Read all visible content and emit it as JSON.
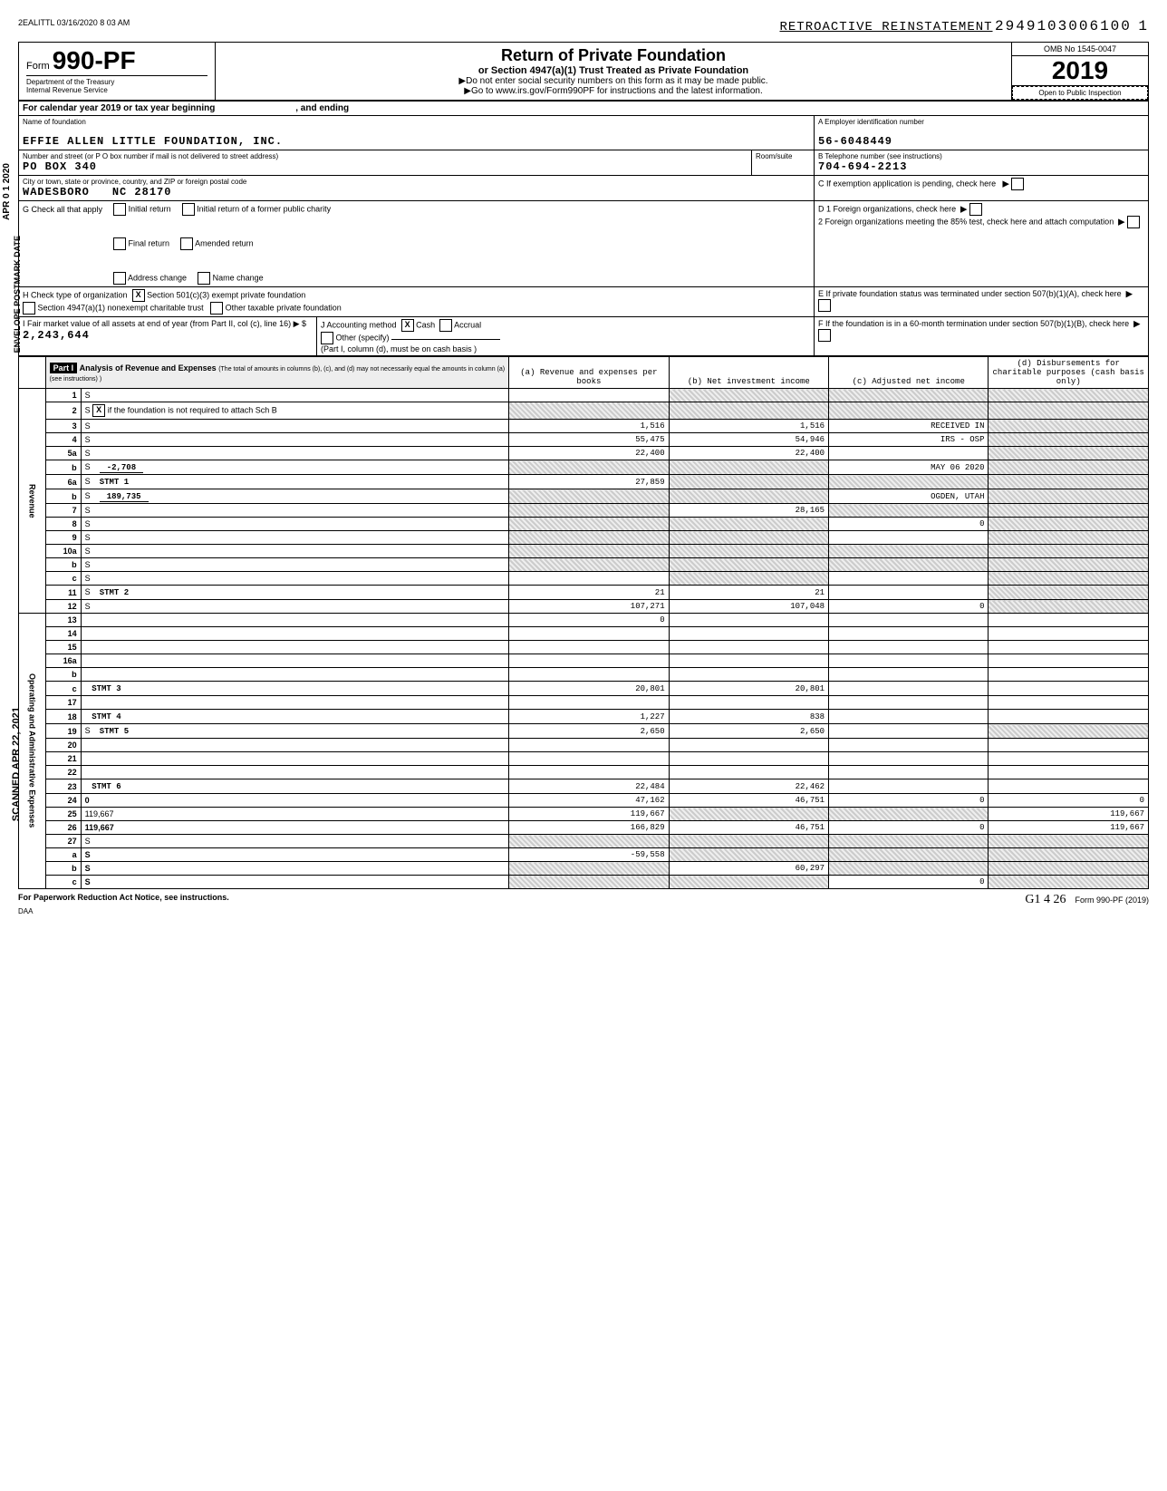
{
  "header": {
    "top_left": "2EALITTL 03/16/2020 8 03 AM",
    "stamp_text": "RETROACTIVE REINSTATEMENT",
    "stamp_number": "2949103006100",
    "stamp_page": "1",
    "form_prefix": "Form",
    "form_number": "990-PF",
    "dept1": "Department of the Treasury",
    "dept2": "Internal Revenue Service",
    "title": "Return of Private Foundation",
    "subtitle": "or Section 4947(a)(1) Trust Treated as Private Foundation",
    "notice1": "▶Do not enter social security numbers on this form as it may be made public.",
    "notice2": "▶Go to www.irs.gov/Form990PF for instructions and the latest information.",
    "omb": "OMB No 1545-0047",
    "year": "2019",
    "public_insp": "Open to Public Inspection",
    "cal_year": "For calendar year 2019 or tax year beginning",
    "cal_year_mid": ", and ending"
  },
  "info": {
    "name_label": "Name of foundation",
    "name_value": "EFFIE ALLEN LITTLE FOUNDATION, INC.",
    "ein_label": "A   Employer identification number",
    "ein_value": "56-6048449",
    "addr_label": "Number and street (or P O  box number if mail is not delivered to street address)",
    "addr_room": "Room/suite",
    "addr_value": "PO BOX 340",
    "phone_label": "B   Telephone number (see instructions)",
    "phone_value": "704-694-2213",
    "city_label": "City or town, state or province, country, and ZIP or foreign postal code",
    "city_value": "WADESBORO",
    "state_value": "NC 28170",
    "c_label": "C   If exemption application is pending, check here",
    "g_label": "G  Check all that apply",
    "g_opts": [
      "Initial return",
      "Final return",
      "Address change",
      "Initial return of a former public charity",
      "Amended return",
      "Name change"
    ],
    "d_label": "D  1   Foreign organizations, check here",
    "d2_label": "2   Foreign organizations meeting the 85% test, check here and attach computation",
    "h_label": "H  Check type of organization",
    "h_opt1": "Section 501(c)(3) exempt private foundation",
    "h_opt2": "Section 4947(a)(1) nonexempt charitable trust",
    "h_opt3": "Other taxable private foundation",
    "e_label": "E   If private foundation status was terminated under section 507(b)(1)(A), check here",
    "i_label": "I   Fair market value of all assets at end of year (from Part II, col (c), line 16) ▶  $",
    "i_value": "2,243,644",
    "j_label": "J   Accounting method",
    "j_cash": "Cash",
    "j_accrual": "Accrual",
    "j_other": "Other (specify)",
    "j_note": "(Part I, column (d), must be on cash basis )",
    "f_label": "F   If the foundation is in a 60-month termination under section 507(b)(1)(B), check here"
  },
  "part1": {
    "label": "Part I",
    "title": "Analysis of Revenue and Expenses",
    "note": "(The total of amounts in columns (b), (c), and (d) may not necessarily equal the amounts in column (a) (see instructions) )",
    "col_a": "(a) Revenue and expenses per books",
    "col_b": "(b) Net investment income",
    "col_c": "(c) Adjusted net income",
    "col_d": "(d) Disbursements for charitable purposes (cash basis only)",
    "revenue_label": "Revenue",
    "expenses_label": "Operating and Administrative Expenses"
  },
  "rows": [
    {
      "n": "1",
      "d": "S",
      "a": "",
      "b": "S",
      "c": "S"
    },
    {
      "n": "2",
      "d": "S",
      "extra": "if the foundation is not required to attach Sch B",
      "chk": "X",
      "a": "S",
      "b": "S",
      "c": "S"
    },
    {
      "n": "3",
      "d": "S",
      "a": "1,516",
      "b": "1,516",
      "c": "RECEIVED IN"
    },
    {
      "n": "4",
      "d": "S",
      "a": "55,475",
      "b": "54,946",
      "c": "IRS - OSP"
    },
    {
      "n": "5a",
      "d": "S",
      "a": "22,400",
      "b": "22,400",
      "c": ""
    },
    {
      "n": "b",
      "d": "S",
      "stmt": "",
      "val": "-2,708",
      "a": "S",
      "b": "S",
      "c": "MAY 06 2020"
    },
    {
      "n": "6a",
      "d": "S",
      "stmt": "STMT 1",
      "a": "27,859",
      "b": "S",
      "c": "S"
    },
    {
      "n": "b",
      "d": "S",
      "val": "189,735",
      "a": "S",
      "b": "S",
      "c": "OGDEN, UTAH"
    },
    {
      "n": "7",
      "d": "S",
      "a": "S",
      "b": "28,165",
      "c": "S"
    },
    {
      "n": "8",
      "d": "S",
      "a": "S",
      "b": "S",
      "c": "0"
    },
    {
      "n": "9",
      "d": "S",
      "a": "S",
      "b": "S",
      "c": ""
    },
    {
      "n": "10a",
      "d": "S",
      "a": "S",
      "b": "S",
      "c": "S"
    },
    {
      "n": "b",
      "d": "S",
      "a": "S",
      "b": "S",
      "c": "S"
    },
    {
      "n": "c",
      "d": "S",
      "a": "",
      "b": "S",
      "c": ""
    },
    {
      "n": "11",
      "d": "S",
      "stmt": "STMT 2",
      "a": "21",
      "b": "21",
      "c": ""
    },
    {
      "n": "12",
      "d": "S",
      "a": "107,271",
      "b": "107,048",
      "c": "0"
    },
    {
      "n": "13",
      "d": "",
      "a": "0",
      "b": "",
      "c": ""
    },
    {
      "n": "14",
      "d": "",
      "a": "",
      "b": "",
      "c": ""
    },
    {
      "n": "15",
      "d": "",
      "a": "",
      "b": "",
      "c": ""
    },
    {
      "n": "16a",
      "d": "",
      "a": "",
      "b": "",
      "c": ""
    },
    {
      "n": "b",
      "d": "",
      "a": "",
      "b": "",
      "c": ""
    },
    {
      "n": "c",
      "d": "",
      "stmt": "STMT 3",
      "a": "20,801",
      "b": "20,801",
      "c": ""
    },
    {
      "n": "17",
      "d": "",
      "a": "",
      "b": "",
      "c": ""
    },
    {
      "n": "18",
      "d": "",
      "stmt": "STMT 4",
      "a": "1,227",
      "b": "838",
      "c": ""
    },
    {
      "n": "19",
      "d": "S",
      "stmt": "STMT 5",
      "a": "2,650",
      "b": "2,650",
      "c": ""
    },
    {
      "n": "20",
      "d": "",
      "a": "",
      "b": "",
      "c": ""
    },
    {
      "n": "21",
      "d": "",
      "a": "",
      "b": "",
      "c": ""
    },
    {
      "n": "22",
      "d": "",
      "a": "",
      "b": "",
      "c": ""
    },
    {
      "n": "23",
      "d": "",
      "stmt": "STMT 6",
      "a": "22,484",
      "b": "22,462",
      "c": ""
    },
    {
      "n": "24",
      "d": "0",
      "bold": true,
      "a": "47,162",
      "b": "46,751",
      "c": "0"
    },
    {
      "n": "25",
      "d": "119,667",
      "a": "119,667",
      "b": "S",
      "c": "S"
    },
    {
      "n": "26",
      "d": "119,667",
      "bold": true,
      "a": "166,829",
      "b": "46,751",
      "c": "0"
    },
    {
      "n": "27",
      "d": "S",
      "a": "S",
      "b": "S",
      "c": "S"
    },
    {
      "n": "a",
      "d": "S",
      "bold": true,
      "a": "-59,558",
      "b": "S",
      "c": "S"
    },
    {
      "n": "b",
      "d": "S",
      "bold": true,
      "a": "S",
      "b": "60,297",
      "c": "S"
    },
    {
      "n": "c",
      "d": "S",
      "bold": true,
      "a": "S",
      "b": "S",
      "c": "0"
    }
  ],
  "footer": {
    "left": "For Paperwork Reduction Act Notice, see instructions.",
    "daa": "DAA",
    "right": "Form 990-PF (2019)",
    "handwrite": "G1 4 26"
  },
  "side_markers": {
    "date1": "APR 0 1 2020",
    "envelope": "ENVELOPE POSTMARK DATE",
    "scanned": "SCANNED APR 22, 2021"
  }
}
